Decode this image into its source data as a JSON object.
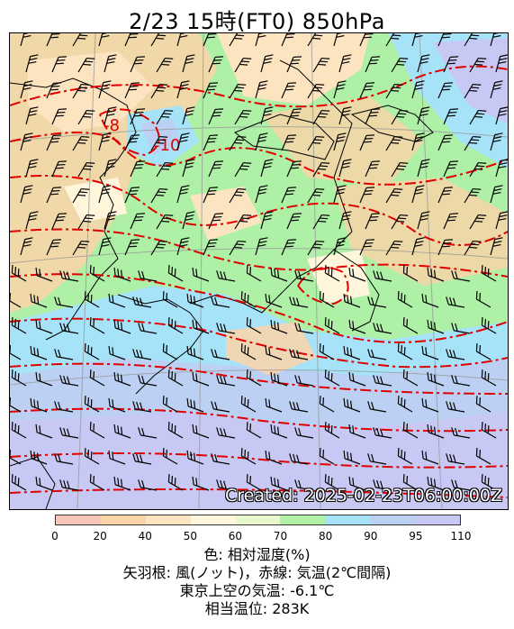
{
  "title": "2/23  15時(FT0)    850hPa",
  "created_stamp": "Created: 2025-02-23T06:00:00Z",
  "colorbar": {
    "ticks": [
      "0",
      "20",
      "40",
      "50",
      "60",
      "70",
      "80",
      "90",
      "95",
      "110"
    ],
    "colors": [
      "#f6c6b8",
      "#fbd3a8",
      "#fde4c0",
      "#fff6dc",
      "#e8f7cc",
      "#b2f2a6",
      "#a6e2f8",
      "#bcd0f4",
      "#c8c8f4"
    ]
  },
  "contour_labels": [
    "-8",
    "-10"
  ],
  "legend": {
    "line1": "色: 相対湿度(%)",
    "line2": "矢羽根: 風(ノット)，赤線: 気温(2℃間隔)",
    "line3": "東京上空の気温: -6.1℃",
    "line4": "相当温位: 283K"
  },
  "colors": {
    "temperature_line": "#e00000",
    "coastline": "#000000",
    "barb": "#000000"
  }
}
